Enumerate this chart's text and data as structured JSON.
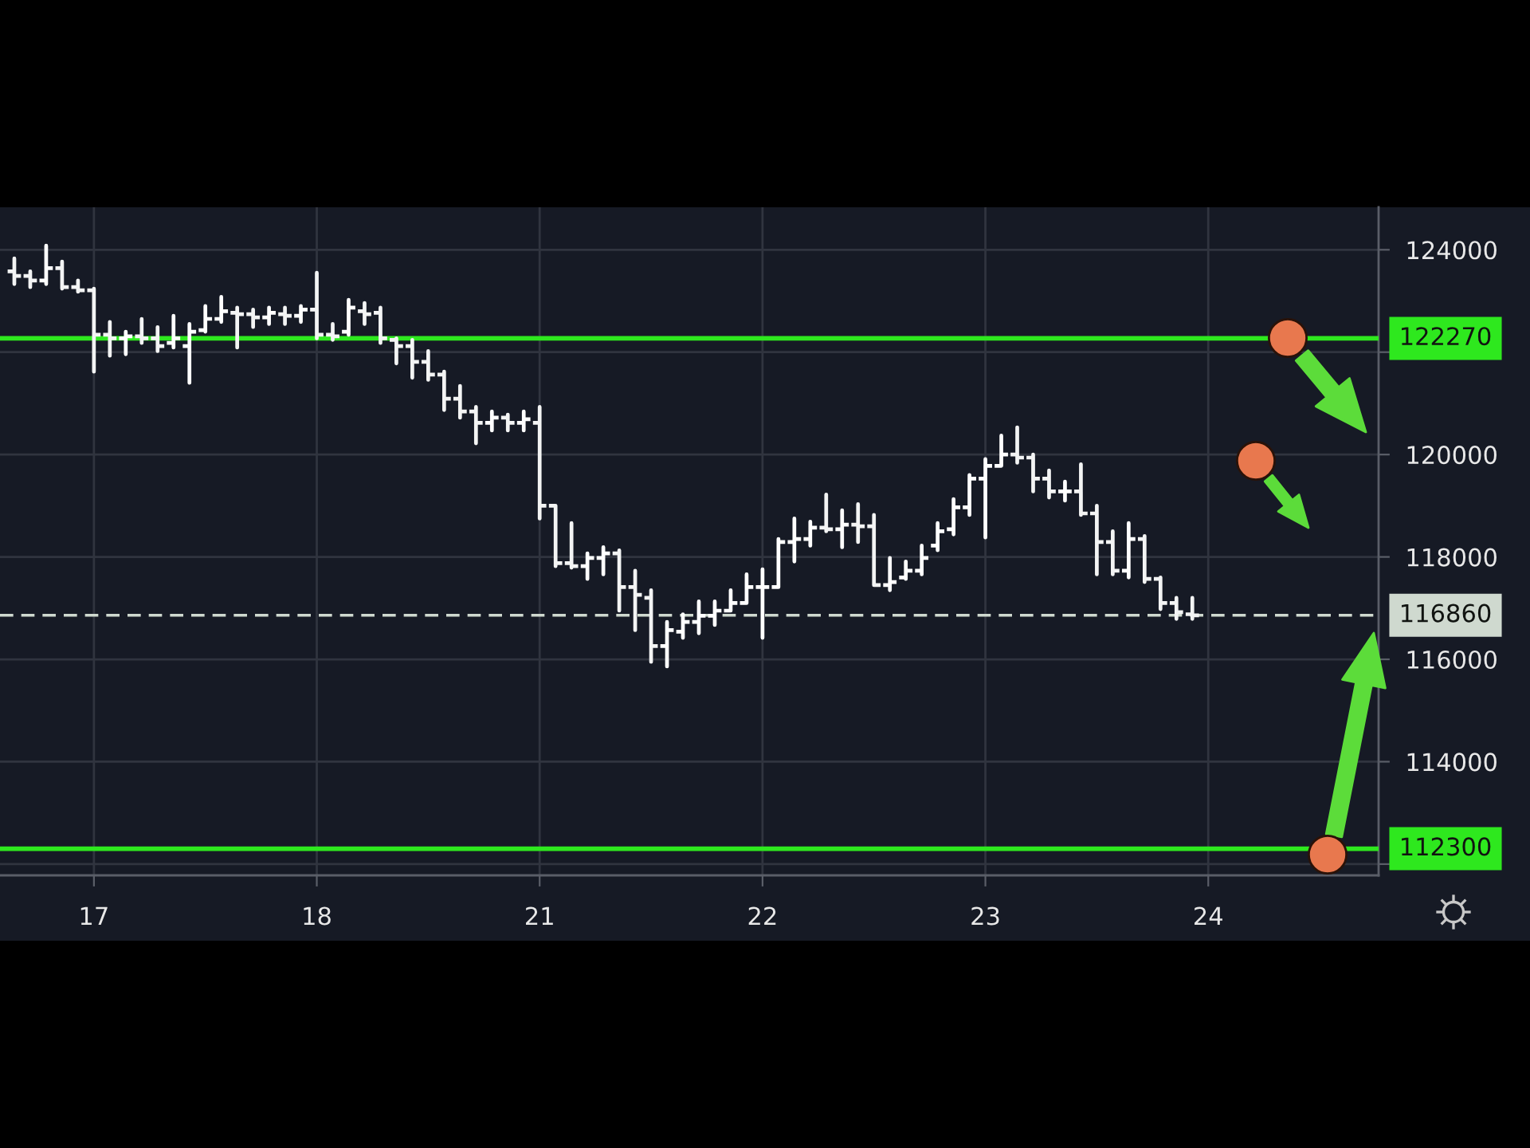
{
  "chart_data": {
    "type": "candlestick",
    "color": "#ffffff",
    "categories": [
      null,
      null,
      null,
      null,
      null,
      "17",
      null,
      null,
      null,
      null,
      null,
      null,
      null,
      null,
      null,
      null,
      null,
      null,
      null,
      "18",
      null,
      null,
      null,
      null,
      null,
      null,
      null,
      null,
      null,
      null,
      null,
      null,
      null,
      "21",
      null,
      null,
      null,
      null,
      null,
      null,
      null,
      null,
      null,
      null,
      null,
      null,
      null,
      "22",
      null,
      null,
      null,
      null,
      null,
      null,
      null,
      null,
      null,
      null,
      null,
      null,
      null,
      "23",
      null,
      null,
      null,
      null,
      null,
      null,
      null,
      null,
      null,
      null,
      null,
      null,
      null,
      "24",
      null,
      null,
      null,
      null,
      null,
      null,
      null,
      null,
      null,
      null
    ],
    "ohlc": [
      [
        123580,
        123830,
        123330,
        123490
      ],
      [
        123490,
        123580,
        123270,
        123400
      ],
      [
        123400,
        124080,
        123330,
        123640
      ],
      [
        123640,
        123770,
        123240,
        123270
      ],
      [
        123270,
        123400,
        123180,
        123210
      ],
      [
        123210,
        123240,
        121620,
        122340
      ],
      [
        122340,
        122590,
        121930,
        122270
      ],
      [
        122270,
        122400,
        121960,
        122310
      ],
      [
        122310,
        122650,
        122180,
        122270
      ],
      [
        122270,
        122490,
        122020,
        122120
      ],
      [
        122180,
        122710,
        122090,
        122270
      ],
      [
        122120,
        122550,
        121400,
        122400
      ],
      [
        122430,
        122900,
        122400,
        122650
      ],
      [
        122650,
        123080,
        122590,
        122800
      ],
      [
        122770,
        122870,
        122090,
        122740
      ],
      [
        122740,
        122830,
        122490,
        122680
      ],
      [
        122680,
        122870,
        122550,
        122770
      ],
      [
        122740,
        122870,
        122550,
        122710
      ],
      [
        122710,
        122900,
        122590,
        122830
      ],
      [
        122830,
        123550,
        122270,
        122340
      ],
      [
        122340,
        122550,
        122240,
        122310
      ],
      [
        122400,
        123020,
        122340,
        122870
      ],
      [
        122800,
        122960,
        122550,
        122740
      ],
      [
        122770,
        122870,
        122180,
        122270
      ],
      [
        122240,
        122270,
        121780,
        122120
      ],
      [
        122120,
        122240,
        121500,
        121810
      ],
      [
        121810,
        122020,
        121460,
        121560
      ],
      [
        121560,
        121620,
        120870,
        121090
      ],
      [
        121090,
        121340,
        120720,
        120840
      ],
      [
        120840,
        120930,
        120220,
        120620
      ],
      [
        120620,
        120840,
        120470,
        120720
      ],
      [
        120720,
        120780,
        120470,
        120620
      ],
      [
        120620,
        120840,
        120470,
        120690
      ],
      [
        120620,
        120930,
        118750,
        119000
      ],
      [
        119000,
        119000,
        117820,
        117880
      ],
      [
        117880,
        118660,
        117790,
        117820
      ],
      [
        117820,
        118070,
        117570,
        117980
      ],
      [
        117980,
        118190,
        117660,
        118070
      ],
      [
        118070,
        118130,
        116950,
        117410
      ],
      [
        117410,
        117730,
        116570,
        117260
      ],
      [
        117200,
        117350,
        115950,
        116260
      ],
      [
        116260,
        116730,
        115860,
        116570
      ],
      [
        116540,
        116880,
        116420,
        116730
      ],
      [
        116730,
        117130,
        116510,
        116850
      ],
      [
        116850,
        117130,
        116670,
        116950
      ],
      [
        116950,
        117350,
        116950,
        117100
      ],
      [
        117100,
        117660,
        117100,
        117410
      ],
      [
        117410,
        117760,
        116420,
        117410
      ],
      [
        117410,
        118350,
        117410,
        118290
      ],
      [
        118290,
        118750,
        117910,
        118350
      ],
      [
        118350,
        118690,
        118220,
        118570
      ],
      [
        118570,
        119220,
        118500,
        118540
      ],
      [
        118540,
        118910,
        118190,
        118630
      ],
      [
        118630,
        119030,
        118290,
        118600
      ],
      [
        118600,
        118820,
        117450,
        117450
      ],
      [
        117450,
        117980,
        117350,
        117510
      ],
      [
        117600,
        117910,
        117570,
        117730
      ],
      [
        117730,
        118220,
        117660,
        117980
      ],
      [
        118220,
        118660,
        118130,
        118500
      ],
      [
        118540,
        119130,
        118440,
        118970
      ],
      [
        118970,
        119600,
        118820,
        119530
      ],
      [
        119530,
        119910,
        118380,
        119780
      ],
      [
        119780,
        120370,
        119780,
        120000
      ],
      [
        120000,
        120530,
        119840,
        119940
      ],
      [
        119940,
        120000,
        119280,
        119530
      ],
      [
        119530,
        119690,
        119160,
        119280
      ],
      [
        119280,
        119470,
        119100,
        119280
      ],
      [
        119280,
        119810,
        118820,
        118850
      ],
      [
        118850,
        119000,
        117660,
        118290
      ],
      [
        118290,
        118500,
        117660,
        117730
      ],
      [
        117730,
        118660,
        117600,
        118350
      ],
      [
        118350,
        118410,
        117510,
        117570
      ],
      [
        117570,
        117600,
        116980,
        117100
      ],
      [
        117100,
        117200,
        116790,
        116920
      ],
      [
        116880,
        117200,
        116790,
        116860
      ],
      null,
      null,
      null,
      null,
      null,
      null,
      null,
      null,
      null,
      null,
      null
    ],
    "ylim": [
      111780,
      124830
    ],
    "yticks": [
      {
        "value": 112000,
        "label": null
      },
      114000,
      116000,
      118000,
      120000,
      {
        "value": 122000,
        "label": null
      },
      124000
    ],
    "ref_lines": [
      {
        "axis": "y",
        "value": 122270,
        "label": "122270",
        "color": "#2ee81e"
      },
      {
        "axis": "y",
        "value": 116860,
        "label": "116860",
        "color": "#cfd9cf",
        "line_style": "dashed"
      },
      {
        "axis": "y",
        "value": 112300,
        "label": "112300",
        "color": "#2ee81e"
      }
    ],
    "grid": true
  }
}
